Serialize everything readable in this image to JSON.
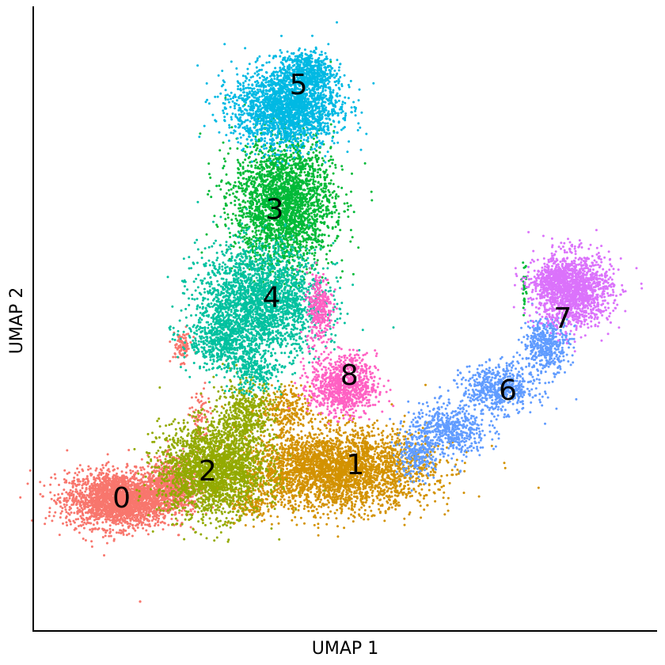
{
  "chart_data": {
    "type": "scatter",
    "title": "",
    "xlabel": "UMAP 1",
    "ylabel": "UMAP 2",
    "x_ticks_shown": false,
    "y_ticks_shown": false,
    "grid": false,
    "legend": "none",
    "xlim": [
      0,
      10
    ],
    "ylim": [
      0,
      10
    ],
    "clusters": [
      {
        "id": "0",
        "color": "#F8766D",
        "label_pos": [
          1.24,
          1.9
        ],
        "blobs": [
          [
            1.2,
            1.9,
            0.8,
            0.42,
            2400
          ],
          [
            2.1,
            2.15,
            0.38,
            0.4,
            700
          ],
          [
            2.25,
            4.45,
            0.15,
            0.22,
            90
          ],
          [
            2.55,
            3.2,
            0.15,
            0.5,
            80
          ]
        ]
      },
      {
        "id": "1",
        "color": "#D39200",
        "label_pos": [
          5.15,
          2.46
        ],
        "blobs": [
          [
            4.8,
            2.4,
            1.45,
            0.6,
            3400
          ],
          [
            3.95,
            3.4,
            0.4,
            0.35,
            250
          ],
          [
            3.4,
            1.8,
            0.3,
            0.25,
            120
          ]
        ]
      },
      {
        "id": "2",
        "color": "#93AA00",
        "label_pos": [
          2.68,
          2.35
        ],
        "blobs": [
          [
            2.75,
            2.4,
            0.8,
            0.7,
            2200
          ],
          [
            3.3,
            3.3,
            0.45,
            0.55,
            500
          ]
        ]
      },
      {
        "id": "3",
        "color": "#00BA38",
        "label_pos": [
          3.8,
          6.72
        ],
        "blobs": [
          [
            3.95,
            6.85,
            0.75,
            1.0,
            2600
          ],
          [
            7.98,
            5.5,
            0.04,
            0.35,
            30
          ]
        ]
      },
      {
        "id": "4",
        "color": "#00C19F",
        "label_pos": [
          3.75,
          5.25
        ],
        "blobs": [
          [
            3.55,
            5.2,
            0.95,
            0.85,
            2400
          ],
          [
            2.95,
            4.55,
            0.55,
            0.45,
            500
          ],
          [
            3.45,
            4.0,
            0.35,
            0.3,
            200
          ]
        ]
      },
      {
        "id": "5",
        "color": "#00B9E3",
        "label_pos": [
          4.2,
          8.8
        ],
        "blobs": [
          [
            4.0,
            8.45,
            0.8,
            0.6,
            2200
          ],
          [
            4.35,
            9.05,
            0.4,
            0.3,
            500
          ]
        ]
      },
      {
        "id": "6",
        "color": "#619CFF",
        "label_pos": [
          7.7,
          3.7
        ],
        "blobs": [
          [
            6.7,
            3.05,
            0.6,
            0.4,
            550
          ],
          [
            7.55,
            3.75,
            0.55,
            0.35,
            600
          ],
          [
            8.35,
            4.5,
            0.35,
            0.4,
            450
          ],
          [
            6.15,
            2.6,
            0.3,
            0.3,
            200
          ]
        ]
      },
      {
        "id": "7",
        "color": "#DB72FB",
        "label_pos": [
          8.62,
          4.9
        ],
        "blobs": [
          [
            8.8,
            5.4,
            0.58,
            0.55,
            1500
          ],
          [
            8.45,
            5.55,
            0.3,
            0.25,
            250
          ]
        ]
      },
      {
        "id": "8",
        "color": "#FF61C3",
        "label_pos": [
          5.05,
          3.95
        ],
        "blobs": [
          [
            4.95,
            3.8,
            0.5,
            0.45,
            900
          ],
          [
            4.55,
            5.1,
            0.2,
            0.55,
            300
          ]
        ]
      }
    ]
  }
}
